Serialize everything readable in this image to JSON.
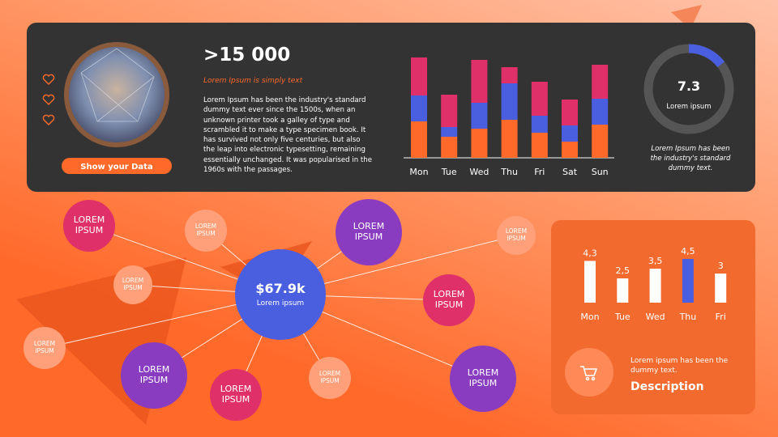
{
  "profile": {
    "button": "Show your Data"
  },
  "stat": {
    "value": ">15 000",
    "subtitle": "Lorem Ipsum is simply text",
    "text": "Lorem Ipsum has been the industry's standard dummy text ever since the 1500s, when an unknown printer took a galley of type and scrambled it to make a type specimen book. It has survived not only five centuries, but also the leap into electronic typesetting, remaining essentially unchanged. It was popularised in the 1960s with the passages."
  },
  "chart_data": [
    {
      "type": "stacked-bar",
      "categories": [
        "Mon",
        "Tue",
        "Wed",
        "Thu",
        "Fri",
        "Sat",
        "Sun"
      ],
      "series": [
        {
          "color": "#ff6a2b",
          "values": [
            45,
            26,
            36,
            47,
            31,
            20,
            41
          ]
        },
        {
          "color": "#4a5fe0",
          "values": [
            32,
            12,
            32,
            45,
            21,
            20,
            32
          ]
        },
        {
          "color": "#e0306a",
          "values": [
            47,
            40,
            53,
            20,
            42,
            32,
            42
          ]
        }
      ],
      "ylim": [
        0,
        130
      ]
    },
    {
      "type": "bar",
      "categories": [
        "Mon",
        "Tue",
        "Wed",
        "Thu",
        "Fri"
      ],
      "values": [
        4.3,
        2.5,
        3.5,
        4.5,
        3
      ],
      "value_labels": [
        "4,3",
        "2,5",
        "3,5",
        "4,5",
        "3"
      ],
      "colors": [
        "#ffffff",
        "#ffffff",
        "#ffffff",
        "#4a5fe0",
        "#ffffff"
      ],
      "ylim": [
        0,
        5
      ]
    },
    {
      "type": "donut",
      "value": 7.3,
      "label": "Lorem ipsum",
      "caption": "Lorem Ipsum has been the industry's standard dummy text.",
      "ylim": [
        0,
        50
      ],
      "color": "#4a5fe0"
    }
  ],
  "network": {
    "center": {
      "value": "$67.9k",
      "label": "Lorem ipsum",
      "color": "#4a5fe0"
    },
    "nodes": [
      {
        "label": "LOREM IPSUM",
        "color": "#e0306a"
      },
      {
        "label": "LOREM IPSUM",
        "color": "#ffa07a"
      },
      {
        "label": "LOREM IPSUM",
        "color": "#ffa07a"
      },
      {
        "label": "LOREM IPSUM",
        "color": "#ffa07a"
      },
      {
        "label": "LOREM IPSUM",
        "color": "#8a3cc0"
      },
      {
        "label": "LOREM IPSUM",
        "color": "#e0306a"
      },
      {
        "label": "LOREM IPSUM",
        "color": "#ffa07a"
      },
      {
        "label": "LOREM IPSUM",
        "color": "#8a3cc0"
      },
      {
        "label": "LOREM IPSUM",
        "color": "#e0306a"
      },
      {
        "label": "LOREM IPSUM",
        "color": "#ffa07a"
      },
      {
        "label": "LOREM IPSUM",
        "color": "#8a3cc0"
      }
    ]
  },
  "description": {
    "text": "Lorem ipsum has been the dummy text.",
    "title": "Description"
  }
}
